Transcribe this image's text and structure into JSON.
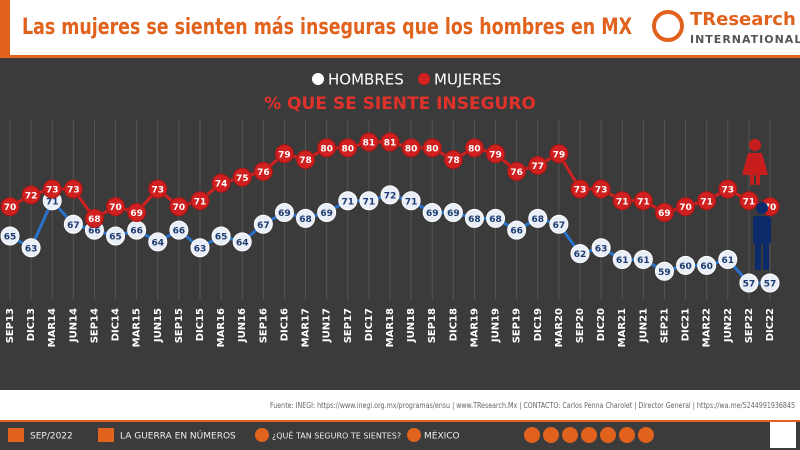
{
  "header": {
    "title": "Las mujeres se sienten más inseguras que los hombres en MX",
    "logo": "TResearch",
    "logo_sub": "INTERNATIONAL"
  },
  "chart_data": {
    "type": "line",
    "subtitle": "% QUE SE SIENTE INSEGURO",
    "categories": [
      "SEP13",
      "DIC13",
      "MAR14",
      "JUN14",
      "SEP14",
      "DIC14",
      "MAR15",
      "JUN15",
      "SEP15",
      "DIC15",
      "MAR16",
      "JUN16",
      "SEP16",
      "DIC16",
      "MAR17",
      "JUN17",
      "SEP17",
      "DIC17",
      "MAR18",
      "JUN18",
      "SEP18",
      "DIC18",
      "MAR19",
      "JUN19",
      "SEP19",
      "DIC19",
      "MAR20",
      "SEP20",
      "DIC20",
      "MAR21",
      "JUN21",
      "SEP21",
      "DIC21",
      "MAR22",
      "JUN22",
      "SEP22",
      "DIC22"
    ],
    "series": [
      {
        "name": "HOMBRES",
        "color": "#2a72c9",
        "values": [
          65,
          63,
          71,
          67,
          66,
          65,
          66,
          64,
          66,
          63,
          65,
          64,
          67,
          69,
          68,
          69,
          71,
          71,
          72,
          71,
          69,
          69,
          68,
          68,
          66,
          68,
          67,
          62,
          63,
          61,
          61,
          59,
          60,
          60,
          61,
          57,
          57
        ]
      },
      {
        "name": "MUJERES",
        "color": "#d0201f",
        "values": [
          70,
          72,
          73,
          73,
          68,
          70,
          69,
          73,
          70,
          71,
          74,
          75,
          76,
          79,
          78,
          80,
          80,
          81,
          81,
          80,
          80,
          78,
          80,
          79,
          76,
          77,
          79,
          73,
          73,
          71,
          71,
          69,
          70,
          71,
          73,
          71,
          70
        ]
      }
    ]
  },
  "footer": {
    "source": "Fuente: INEGI: https://www.inegi.org.mx/programas/ensu | www.TResearch.Mx | CONTACTO: Carlos Penna Charolet | Director General | https://wa.me/5244991936845"
  },
  "bottom_bar": {
    "date": "SEP/2022",
    "series_name": "LA GUERRA EN NÚMEROS",
    "question": "¿QUÉ TAN SEGURO TE SIENTES?",
    "place": "MÉXICO"
  }
}
